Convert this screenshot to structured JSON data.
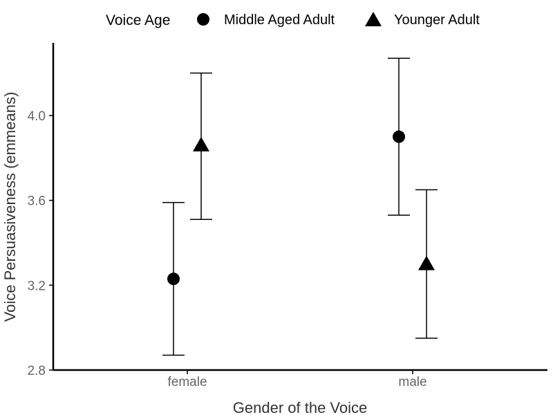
{
  "chart_data": {
    "type": "scatter",
    "subtype": "point-with-error-bars",
    "title": "",
    "xlabel": "Gender of the Voice",
    "ylabel": "Voice Persuasiveness (emmeans)",
    "categories": [
      "female",
      "male"
    ],
    "ylim": [
      2.8,
      4.35
    ],
    "yticks": [
      2.8,
      3.2,
      3.6,
      4.0
    ],
    "ytick_labels": [
      "2.8",
      "3.2",
      "3.6",
      "4.0"
    ],
    "grid": false,
    "legend": {
      "title": "Voice Age",
      "position": "top"
    },
    "series": [
      {
        "name": "Middle Aged Adult",
        "marker": "circle",
        "color": "#000000",
        "values": [
          3.23,
          3.9
        ],
        "lower": [
          2.87,
          3.53
        ],
        "upper": [
          3.59,
          4.27
        ]
      },
      {
        "name": "Younger Adult",
        "marker": "triangle",
        "color": "#000000",
        "values": [
          3.86,
          3.3
        ],
        "lower": [
          3.51,
          2.95
        ],
        "upper": [
          4.2,
          3.65
        ]
      }
    ]
  }
}
